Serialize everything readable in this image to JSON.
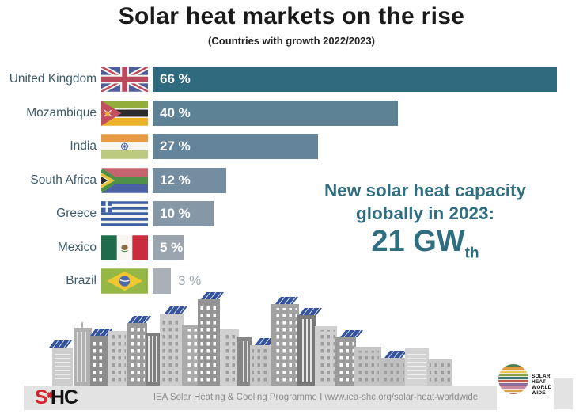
{
  "title": "Solar heat markets on the rise",
  "subtitle": "(Countries with growth 2022/2023)",
  "chart_data": {
    "type": "bar",
    "orientation": "horizontal",
    "title": "Solar heat markets on the rise",
    "subtitle": "(Countries with growth 2022/2023)",
    "unit": "%",
    "categories": [
      "United Kingdom",
      "Mozambique",
      "India",
      "South Africa",
      "Greece",
      "Mexico",
      "Brazil"
    ],
    "values": [
      66,
      40,
      27,
      12,
      10,
      5,
      3
    ],
    "value_labels": [
      "66 %",
      "40 %",
      "27 %",
      "12 %",
      "10 %",
      "5 %",
      "3 %"
    ],
    "bar_colors": [
      "#2f6a7f",
      "#5d8195",
      "#63849b",
      "#758da0",
      "#8697a6",
      "#9aa5af",
      "#a9b0b8"
    ],
    "outside_label_color": "#9aa3ac",
    "xlim": [
      0,
      66
    ],
    "grid": false,
    "legend": false
  },
  "callout": {
    "line1": "New solar heat capacity",
    "line2": "globally in 2023:",
    "value": "21 GW",
    "value_subscript": "th"
  },
  "footer": {
    "text": "IEA Solar Heating & Cooling Programme I www.iea-shc.org/solar-heat-worldwide"
  },
  "logos": {
    "shc": {
      "s": "S",
      "sun_icon": "✹",
      "hc": "HC"
    },
    "solar_heat_worldwide": {
      "lines": [
        "SOLAR",
        "HEAT",
        "WORLD",
        "WIDE"
      ]
    }
  },
  "colors": {
    "accent_teal": "#2e6e80",
    "title_text": "#1a1a1a",
    "country_label": "#3d5a6a",
    "footer_bg": "#e3e3e3",
    "footer_text": "#8c8c8c",
    "shc_red": "#d6252b",
    "solar_panel_blue": "#33539c"
  }
}
